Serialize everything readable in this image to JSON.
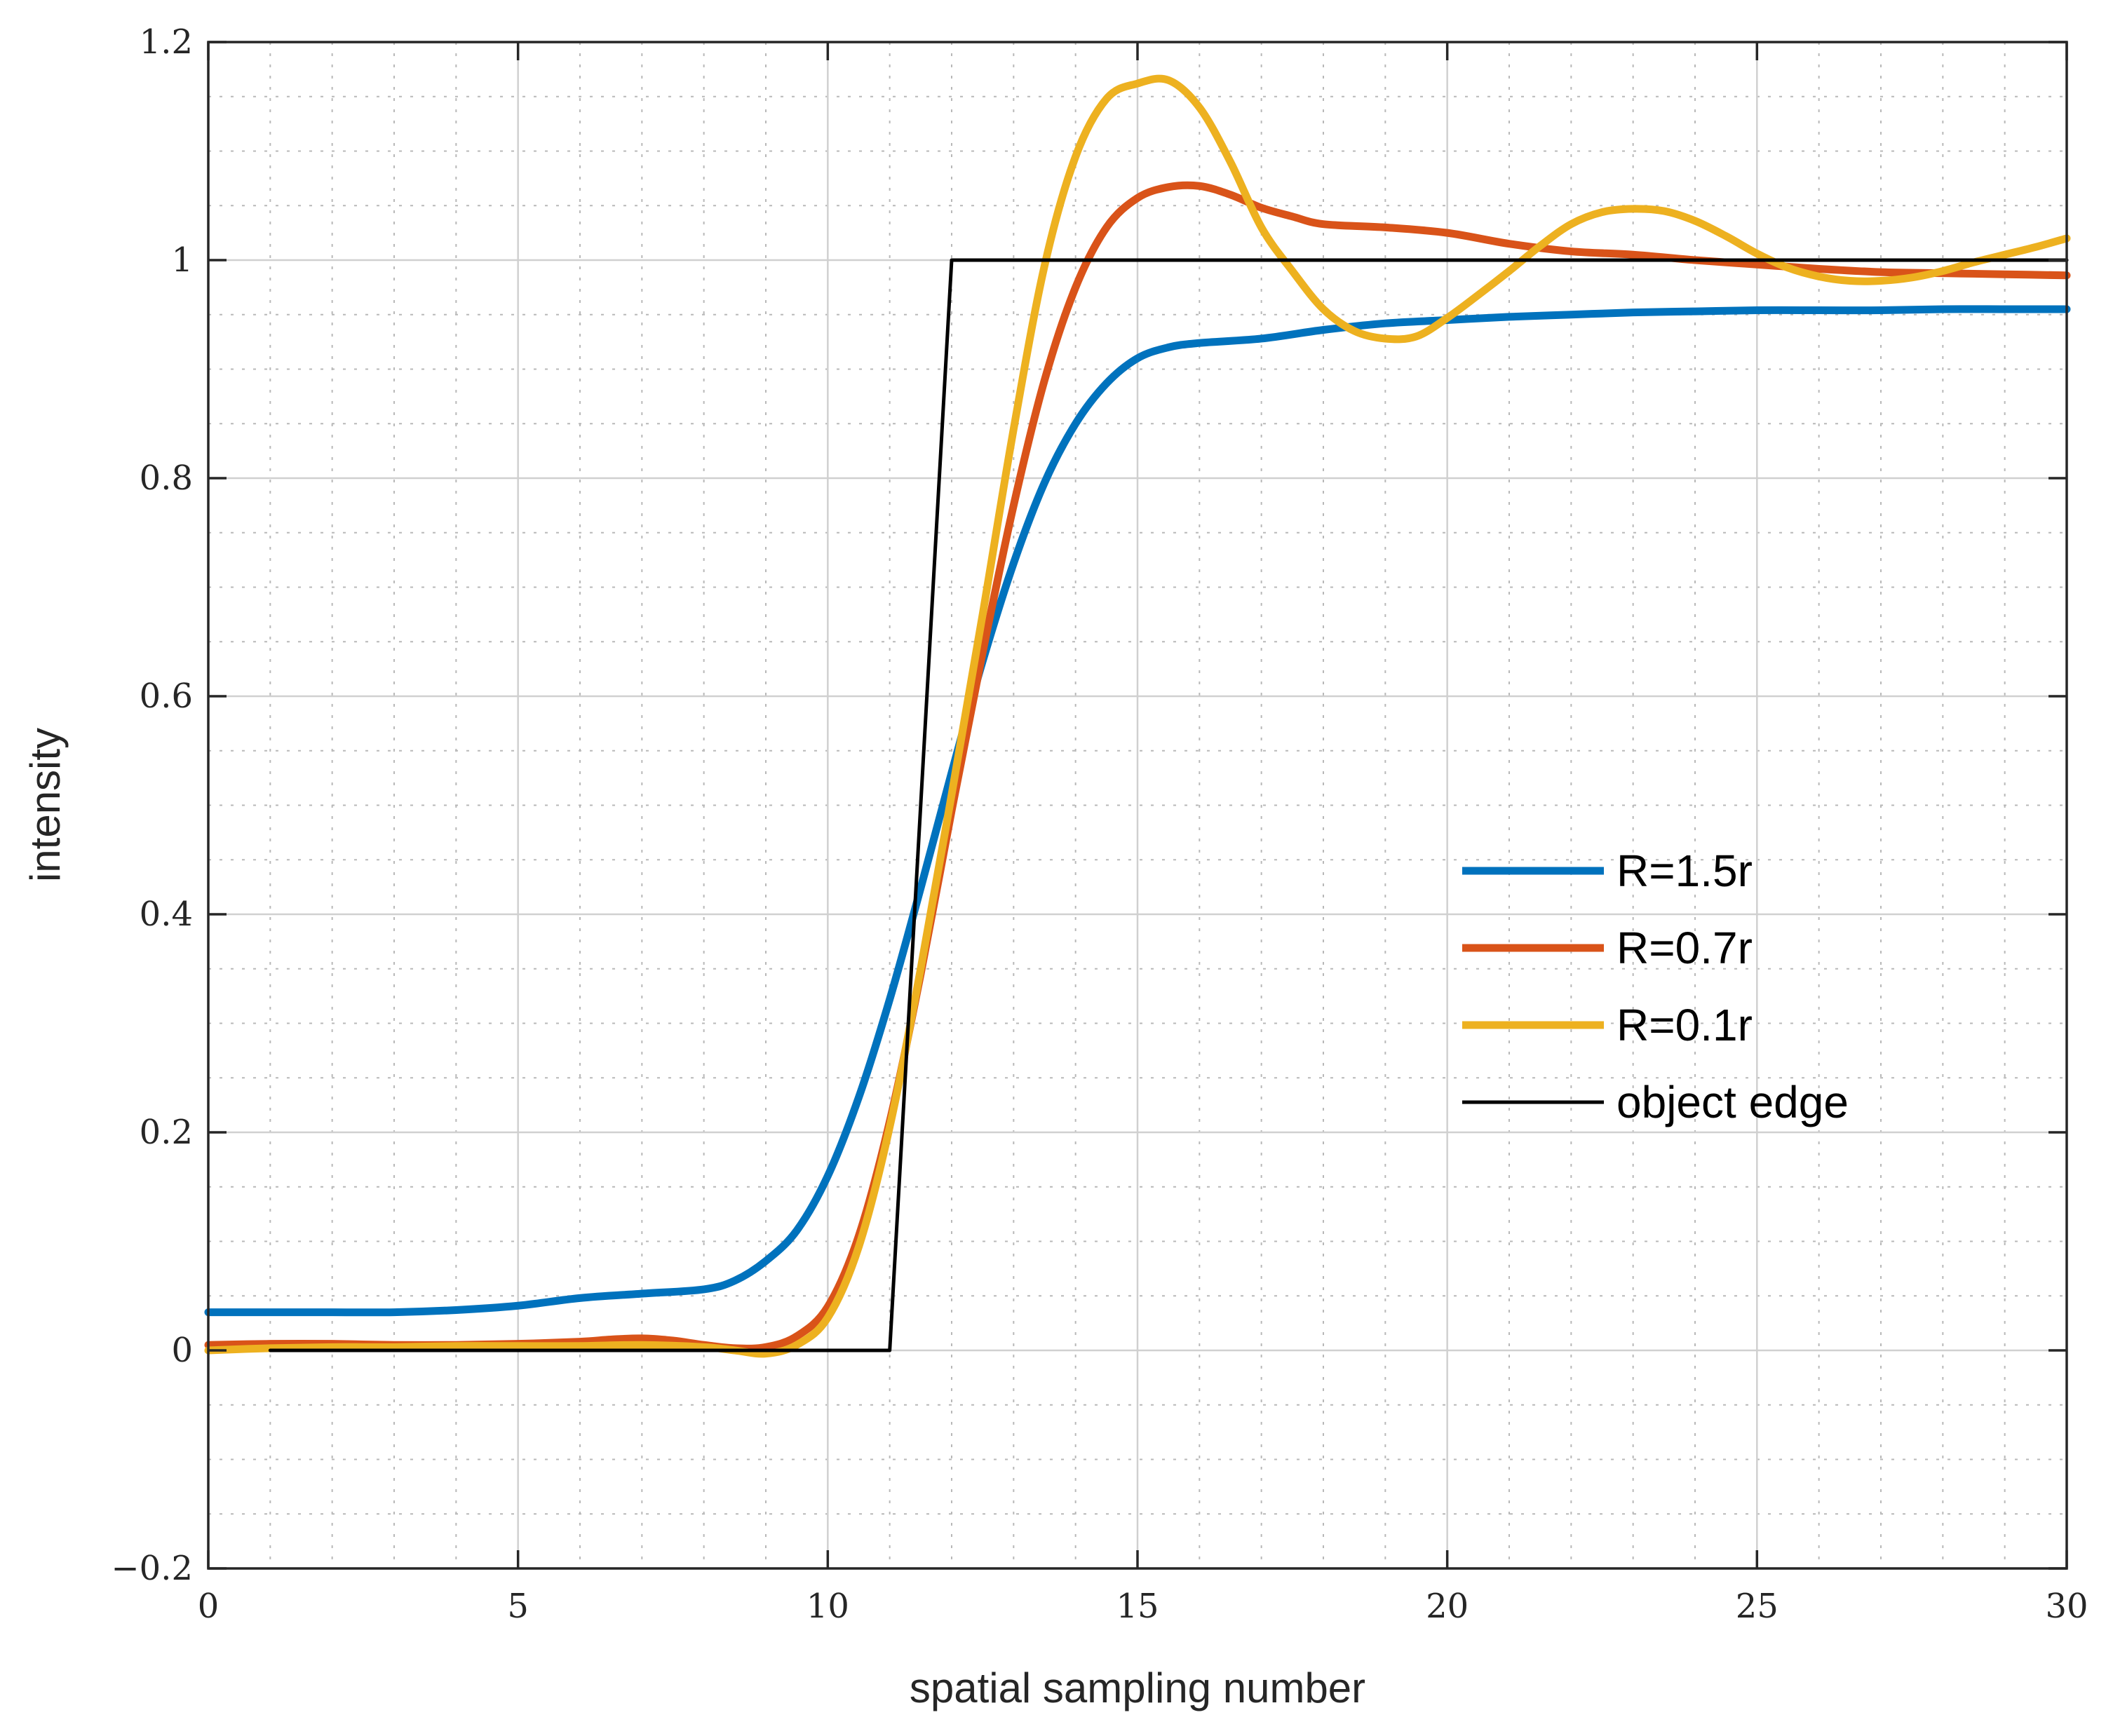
{
  "chart_data": {
    "type": "line",
    "title": "",
    "xlabel": "spatial sampling number",
    "ylabel": "intensity",
    "xlim": [
      0,
      30
    ],
    "ylim": [
      -0.2,
      1.2
    ],
    "xticks": [
      0,
      5,
      10,
      15,
      20,
      25,
      30
    ],
    "xtick_labels": [
      "0",
      "5",
      "10",
      "15",
      "20",
      "25",
      "30"
    ],
    "yticks": [
      -0.2,
      0,
      0.2,
      0.4,
      0.6,
      0.8,
      1,
      1.2
    ],
    "ytick_labels": [
      "−0.2",
      "0",
      "0.2",
      "0.4",
      "0.6",
      "0.8",
      "1",
      "1.2"
    ],
    "xminor": [
      1,
      2,
      3,
      4,
      6,
      7,
      8,
      9,
      11,
      12,
      13,
      14,
      16,
      17,
      18,
      19,
      21,
      22,
      23,
      24,
      26,
      27,
      28,
      29
    ],
    "yminor": [
      -0.15,
      -0.1,
      -0.05,
      0.05,
      0.1,
      0.15,
      0.25,
      0.3,
      0.35,
      0.45,
      0.5,
      0.55,
      0.65,
      0.7,
      0.75,
      0.85,
      0.9,
      0.95,
      1.05,
      1.1,
      1.15
    ],
    "grid": "on",
    "legend_position": "right",
    "series": [
      {
        "name": "R=1.5r",
        "color": "#0072bd",
        "width": 11,
        "x": [
          0,
          1,
          2,
          3,
          4,
          5,
          6,
          7,
          8,
          8.5,
          9,
          9.5,
          10,
          10.5,
          11,
          11.5,
          12,
          12.5,
          13,
          13.5,
          14,
          14.5,
          15,
          15.5,
          16,
          17,
          18,
          19,
          20,
          21,
          22,
          23,
          24,
          25,
          26,
          27,
          28,
          29,
          30
        ],
        "y": [
          0.035,
          0.035,
          0.035,
          0.035,
          0.037,
          0.041,
          0.048,
          0.052,
          0.056,
          0.064,
          0.082,
          0.11,
          0.16,
          0.232,
          0.322,
          0.424,
          0.53,
          0.632,
          0.722,
          0.796,
          0.85,
          0.887,
          0.91,
          0.92,
          0.924,
          0.928,
          0.936,
          0.942,
          0.945,
          0.948,
          0.95,
          0.952,
          0.953,
          0.954,
          0.954,
          0.954,
          0.955,
          0.955,
          0.955
        ]
      },
      {
        "name": "R=0.7r",
        "color": "#d95319",
        "width": 11,
        "x": [
          0,
          1,
          2,
          3,
          4,
          5,
          6,
          6.5,
          7,
          7.5,
          8,
          8.5,
          9,
          9.5,
          10,
          10.5,
          11,
          11.5,
          12,
          12.5,
          13,
          13.5,
          14,
          14.5,
          15,
          15.5,
          16,
          16.5,
          17,
          17.5,
          18,
          19,
          20,
          21,
          22,
          23,
          24,
          25,
          26,
          27,
          28,
          29,
          30
        ],
        "y": [
          0.005,
          0.006,
          0.006,
          0.005,
          0.005,
          0.006,
          0.008,
          0.01,
          0.011,
          0.009,
          0.005,
          0.002,
          0.003,
          0.013,
          0.04,
          0.105,
          0.21,
          0.345,
          0.495,
          0.64,
          0.775,
          0.89,
          0.975,
          1.03,
          1.057,
          1.067,
          1.068,
          1.06,
          1.048,
          1.04,
          1.033,
          1.03,
          1.025,
          1.015,
          1.008,
          1.005,
          1.0,
          0.996,
          0.992,
          0.989,
          0.988,
          0.987,
          0.986
        ]
      },
      {
        "name": "R=0.1r",
        "color": "#edb120",
        "width": 11,
        "x": [
          0,
          1,
          2,
          3,
          4,
          5,
          6,
          7,
          8,
          8.5,
          9,
          9.5,
          10,
          10.5,
          11,
          11.5,
          12,
          12.5,
          13,
          13.5,
          14,
          14.5,
          15,
          15.5,
          16,
          16.5,
          17,
          17.5,
          18,
          18.5,
          19,
          19.5,
          20,
          20.5,
          21,
          21.5,
          22,
          22.5,
          23,
          23.5,
          24,
          24.5,
          25,
          25.5,
          26,
          26.5,
          27,
          27.5,
          28,
          28.5,
          29,
          29.5,
          30
        ],
        "y": [
          0.0,
          0.002,
          0.003,
          0.003,
          0.004,
          0.004,
          0.004,
          0.005,
          0.003,
          0.0,
          -0.003,
          0.005,
          0.03,
          0.095,
          0.205,
          0.35,
          0.51,
          0.675,
          0.845,
          0.995,
          1.095,
          1.148,
          1.162,
          1.165,
          1.14,
          1.09,
          1.03,
          0.99,
          0.955,
          0.935,
          0.928,
          0.93,
          0.947,
          0.968,
          0.99,
          1.013,
          1.033,
          1.044,
          1.047,
          1.045,
          1.036,
          1.022,
          1.006,
          0.993,
          0.985,
          0.981,
          0.981,
          0.984,
          0.99,
          0.998,
          1.005,
          1.012,
          1.02
        ]
      },
      {
        "name": "object edge",
        "color": "#000000",
        "width": 5,
        "x": [
          1,
          11,
          12,
          30
        ],
        "y": [
          0,
          0,
          1,
          1
        ]
      }
    ]
  }
}
